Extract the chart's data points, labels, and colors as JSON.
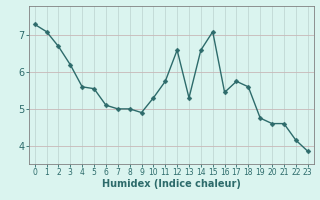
{
  "x": [
    0,
    1,
    2,
    3,
    4,
    5,
    6,
    7,
    8,
    9,
    10,
    11,
    12,
    13,
    14,
    15,
    16,
    17,
    18,
    19,
    20,
    21,
    22,
    23
  ],
  "y": [
    7.3,
    7.1,
    6.7,
    6.2,
    5.6,
    5.55,
    5.1,
    5.0,
    5.0,
    4.9,
    5.3,
    5.75,
    6.6,
    5.3,
    6.6,
    7.1,
    5.45,
    5.75,
    5.6,
    4.75,
    4.6,
    4.6,
    4.15,
    3.85
  ],
  "line_color": "#2d6b6b",
  "marker": "D",
  "marker_size": 2.5,
  "bg_color": "#daf4ef",
  "grid_color_h": "#c8b8b8",
  "grid_color_v": "#c0d8d4",
  "axis_color": "#808080",
  "xlabel": "Humidex (Indice chaleur)",
  "ylim": [
    3.5,
    7.8
  ],
  "xlim": [
    -0.5,
    23.5
  ],
  "yticks": [
    4,
    5,
    6,
    7
  ],
  "xticks": [
    0,
    1,
    2,
    3,
    4,
    5,
    6,
    7,
    8,
    9,
    10,
    11,
    12,
    13,
    14,
    15,
    16,
    17,
    18,
    19,
    20,
    21,
    22,
    23
  ],
  "font_color": "#2d6b6b",
  "linewidth": 1.0
}
